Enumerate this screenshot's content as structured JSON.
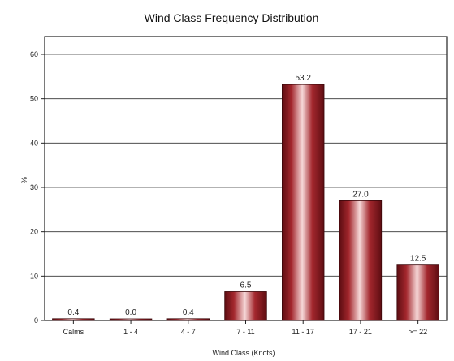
{
  "chart_data": {
    "type": "bar",
    "title": "Wind Class Frequency Distribution",
    "xlabel": "Wind Class (Knots)",
    "ylabel": "%",
    "categories": [
      "Calms",
      "1 - 4",
      "4 - 7",
      "7 - 11",
      "11 - 17",
      "17 - 21",
      ">= 22"
    ],
    "values": [
      0.4,
      0.0,
      0.4,
      6.5,
      53.2,
      27.0,
      12.5
    ],
    "data_labels": [
      "0.4",
      "0.0",
      "0.4",
      "6.5",
      "53.2",
      "27.0",
      "12.5"
    ],
    "ylim": [
      0,
      60
    ],
    "yticks": [
      0,
      10,
      20,
      30,
      40,
      50,
      60
    ],
    "grid": true,
    "bar_color": "#9b1c24"
  }
}
